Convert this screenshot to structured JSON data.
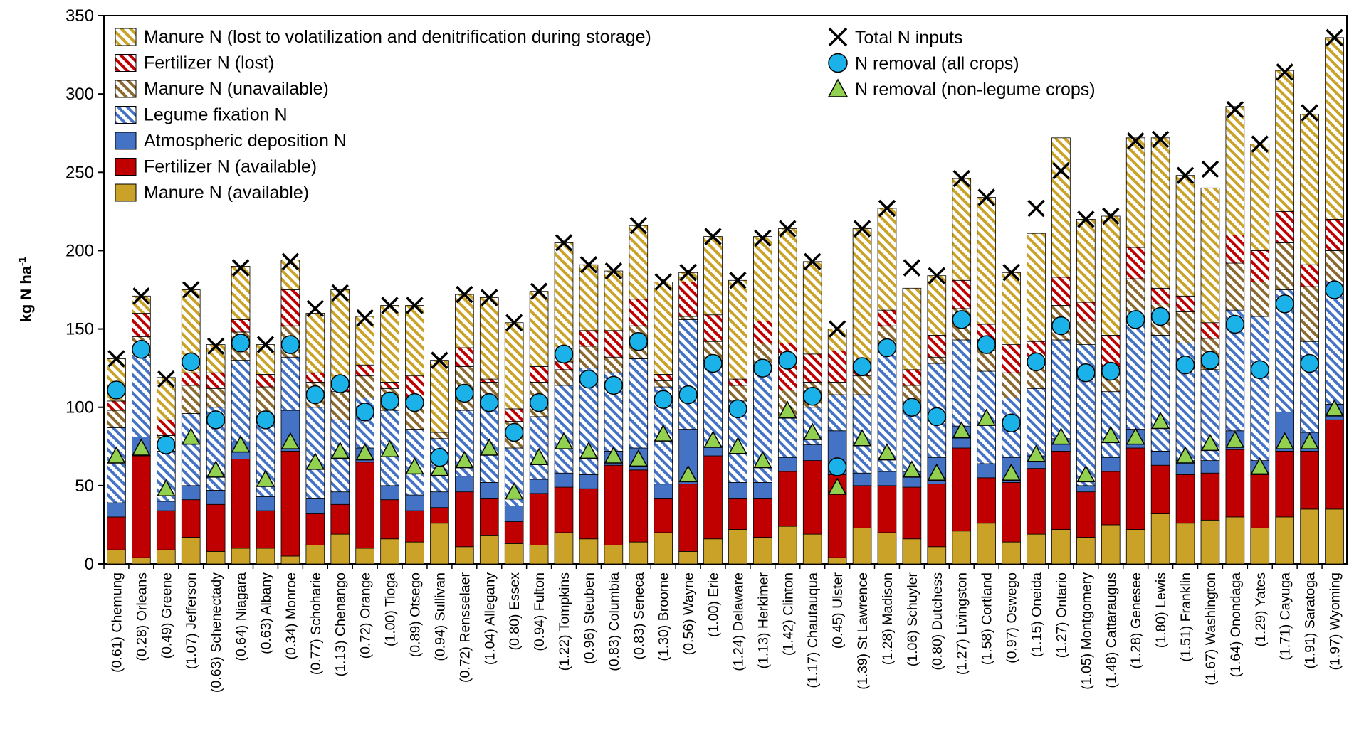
{
  "chart_data": {
    "type": "bar",
    "stacked": true,
    "title": "",
    "xlabel": "",
    "ylabel": "kg N ha",
    "ylabel_superscript": "-1",
    "ylim": [
      0,
      350
    ],
    "yticks": [
      0,
      50,
      100,
      150,
      200,
      250,
      300,
      350
    ],
    "categories": [
      "(0.61) Chemung",
      "(0.28) Orleans",
      "(0.49) Greene",
      "(1.07) Jefferson",
      "(0.63) Schenectady",
      "(0.64) Niagara",
      "(0.63) Albany",
      "(0.34) Monroe",
      "(0.77) Schoharie",
      "(1.13) Chenango",
      "(0.72) Orange",
      "(1.00) Tioga",
      "(0.89) Otsego",
      "(0.94) Sullivan",
      "(0.72) Rensselaer",
      "(1.04) Allegany",
      "(0.80) Essex",
      "(0.94) Fulton",
      "(1.22) Tompkins",
      "(0.96) Steuben",
      "(0.83) Columbia",
      "(0.83) Seneca",
      "(1.30) Broome",
      "(0.56) Wayne",
      "(1.00) Erie",
      "(1.24) Delaware",
      "(1.13) Herkimer",
      "(1.42) Clinton",
      "(1.17) Chautauqua",
      "(0.45) Ulster",
      "(1.39) St Lawrence",
      "(1.28) Madison",
      "(1.06) Schuyler",
      "(0.80) Dutchess",
      "(1.27) Livingston",
      "(1.58) Cortland",
      "(0.97) Oswego",
      "(1.15) Oneida",
      "(1.27) Ontario",
      "(1.05) Montgomery",
      "(1.48) Cattaraugus",
      "(1.28) Genesee",
      "(1.80) Lewis",
      "(1.51) Franklin",
      "(1.67) Washington",
      "(1.64) Onondaga",
      "(1.29) Yates",
      "(1.71) Cayuga",
      "(1.91) Saratoga",
      "(1.97) Wyoming"
    ],
    "series": [
      {
        "name": "Manure N (available)",
        "color": "#c9a227",
        "pattern": "solid",
        "values": [
          9,
          4,
          9,
          17,
          8,
          10,
          10,
          5,
          12,
          19,
          10,
          16,
          14,
          26,
          11,
          18,
          13,
          12,
          20,
          16,
          12,
          14,
          20,
          8,
          16,
          22,
          17,
          24,
          19,
          4,
          23,
          20,
          16,
          11,
          21,
          26,
          14,
          19,
          22,
          17,
          25,
          22,
          32,
          26,
          28,
          30,
          23,
          30,
          35,
          35
        ]
      },
      {
        "name": "Fertilizer N (available)",
        "color": "#c00000",
        "pattern": "solid",
        "values": [
          21,
          65,
          25,
          24,
          30,
          57,
          24,
          67,
          20,
          19,
          55,
          25,
          20,
          10,
          35,
          24,
          14,
          33,
          29,
          32,
          51,
          46,
          22,
          43,
          53,
          20,
          25,
          35,
          47,
          53,
          27,
          30,
          33,
          40,
          53,
          29,
          38,
          42,
          50,
          29,
          34,
          52,
          31,
          31,
          30,
          43,
          34,
          42,
          37,
          57
        ]
      },
      {
        "name": "Atmospheric deposition N",
        "color": "#4472c4",
        "pattern": "solid",
        "values": [
          9,
          12,
          6,
          9,
          9,
          11,
          9,
          26,
          10,
          8,
          9,
          9,
          10,
          10,
          10,
          10,
          10,
          9,
          9,
          9,
          9,
          14,
          9,
          35,
          6,
          10,
          10,
          9,
          10,
          28,
          8,
          9,
          10,
          17,
          14,
          9,
          16,
          8,
          8,
          4,
          9,
          12,
          9,
          9,
          8,
          12,
          9,
          25,
          12,
          10
        ]
      },
      {
        "name": "Legume fixation N",
        "color": "#4472c4",
        "pattern": "hatch",
        "values": [
          48,
          52,
          32,
          46,
          53,
          52,
          54,
          34,
          58,
          46,
          32,
          48,
          42,
          34,
          42,
          48,
          37,
          40,
          56,
          68,
          50,
          57,
          62,
          70,
          55,
          52,
          75,
          25,
          24,
          23,
          50,
          77,
          41,
          60,
          55,
          59,
          38,
          43,
          63,
          90,
          42,
          70,
          74,
          75,
          58,
          77,
          92,
          78,
          58,
          78
        ]
      },
      {
        "name": "Manure N  (unavailable)",
        "color": "#8b6a2f",
        "pattern": "hatch",
        "values": [
          11,
          12,
          10,
          18,
          12,
          18,
          16,
          20,
          16,
          18,
          14,
          14,
          19,
          4,
          28,
          16,
          17,
          22,
          10,
          14,
          10,
          21,
          4,
          2,
          12,
          10,
          14,
          18,
          16,
          8,
          12,
          16,
          14,
          4,
          20,
          20,
          16,
          16,
          22,
          15,
          16,
          26,
          20,
          20,
          20,
          30,
          22,
          30,
          35,
          20
        ]
      },
      {
        "name": "Fertilizer N (lost)",
        "color": "#c00000",
        "pattern": "hatch",
        "values": [
          6,
          15,
          10,
          8,
          10,
          8,
          8,
          23,
          6,
          6,
          7,
          4,
          15,
          0,
          12,
          2,
          8,
          10,
          5,
          10,
          17,
          17,
          4,
          22,
          17,
          4,
          14,
          30,
          18,
          20,
          4,
          10,
          10,
          14,
          18,
          10,
          18,
          14,
          18,
          12,
          20,
          20,
          10,
          10,
          10,
          18,
          20,
          20,
          14,
          20
        ]
      },
      {
        "name": "Manure N (lost to volatilization and denitrification during storage)",
        "color": "#c9a227",
        "pattern": "hatch",
        "values": [
          27,
          11,
          27,
          53,
          18,
          34,
          19,
          19,
          38,
          59,
          31,
          49,
          45,
          46,
          34,
          52,
          55,
          48,
          76,
          42,
          38,
          47,
          59,
          6,
          50,
          63,
          54,
          73,
          59,
          14,
          90,
          65,
          52,
          38,
          65,
          81,
          46,
          69,
          89,
          53,
          76,
          70,
          96,
          77,
          86,
          82,
          68,
          90,
          96,
          116
        ]
      }
    ],
    "markers": [
      {
        "name": "Total N inputs",
        "shape": "x",
        "values": [
          131,
          171,
          118,
          175,
          139,
          189,
          140,
          193,
          163,
          173,
          157,
          165,
          165,
          130,
          172,
          170,
          154,
          174,
          205,
          191,
          187,
          216,
          180,
          186,
          209,
          181,
          208,
          214,
          193,
          150,
          214,
          227,
          189,
          184,
          246,
          234,
          186,
          227,
          251,
          220,
          222,
          270,
          271,
          248,
          252,
          290,
          268,
          314,
          288,
          336
        ]
      },
      {
        "name": "N removal (all crops)",
        "shape": "circle",
        "color": "#1ab2e8",
        "values": [
          111,
          137,
          76,
          129,
          92,
          141,
          92,
          140,
          108,
          115,
          97,
          104,
          103,
          68,
          109,
          103,
          84,
          103,
          134,
          118,
          114,
          142,
          105,
          108,
          128,
          99,
          125,
          130,
          107,
          62,
          126,
          138,
          100,
          94,
          156,
          140,
          90,
          129,
          152,
          122,
          123,
          156,
          158,
          127,
          130,
          153,
          124,
          166,
          128,
          175
        ]
      },
      {
        "name": "N removal (non-legume crops)",
        "shape": "triangle",
        "color": "#92d050",
        "values": [
          69,
          74,
          48,
          81,
          60,
          76,
          54,
          78,
          65,
          72,
          71,
          73,
          62,
          61,
          66,
          74,
          46,
          68,
          78,
          72,
          69,
          67,
          83,
          57,
          79,
          75,
          66,
          98,
          84,
          49,
          80,
          71,
          60,
          58,
          85,
          93,
          58,
          70,
          81,
          57,
          82,
          81,
          91,
          69,
          77,
          79,
          62,
          78,
          78,
          99
        ]
      }
    ]
  },
  "legend_left": [
    "Manure N (lost to volatilization and denitrification during storage)",
    "Fertilizer N (lost)",
    "Manure N  (unavailable)",
    "Legume fixation N",
    "Atmospheric deposition N",
    "Fertilizer N (available)",
    "Manure N (available)"
  ],
  "legend_right": [
    "Total N inputs",
    "N removal (all crops)",
    "N removal (non-legume crops)"
  ]
}
